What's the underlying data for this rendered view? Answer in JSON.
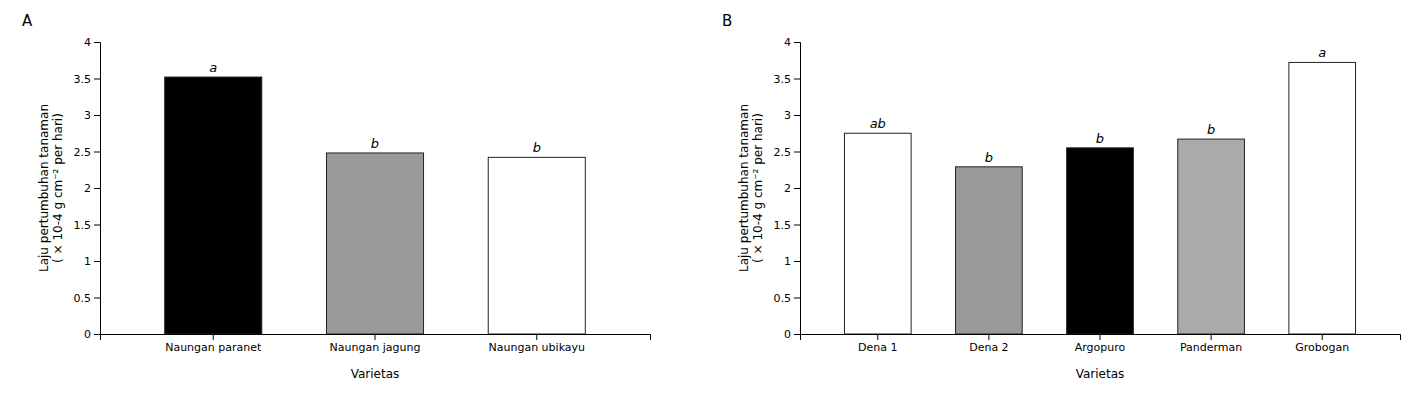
{
  "chart_data": [
    {
      "type": "bar",
      "title": "A",
      "categories": [
        "Naungan paranet",
        "Naungan jagung",
        "Naungan ubikayu"
      ],
      "values": [
        3.52,
        2.48,
        2.42
      ],
      "colors": [
        "black",
        "#999999",
        "white"
      ],
      "annotations": [
        "a",
        "b",
        "b"
      ],
      "xlabel": "Varietas",
      "ylabel": "Laju pertumbuhan tanaman\n( × 10-4 g cm⁻² per hari)",
      "ylim": [
        0,
        4
      ],
      "yticks": [
        0,
        0.5,
        1,
        1.5,
        2,
        2.5,
        3,
        3.5,
        4
      ],
      "grid": false
    },
    {
      "type": "bar",
      "title": "B",
      "categories": [
        "Dena 1",
        "Dena 2",
        "Argopuro",
        "Panderman",
        "Grobogan"
      ],
      "values": [
        2.75,
        2.29,
        2.55,
        2.67,
        3.72
      ],
      "colors": [
        "white",
        "#999999",
        "black",
        "#aaaaaa",
        "white"
      ],
      "annotations": [
        "ab",
        "b",
        "b",
        "b",
        "a"
      ],
      "xlabel": "Varietas",
      "ylabel": "Laju pertumbuhan tanaman\n( × 10-4 g cm⁻² per hari)",
      "ylim": [
        0,
        4
      ],
      "yticks": [
        0,
        0.5,
        1,
        1.5,
        2,
        2.5,
        3,
        3.5,
        4
      ],
      "grid": false
    }
  ]
}
